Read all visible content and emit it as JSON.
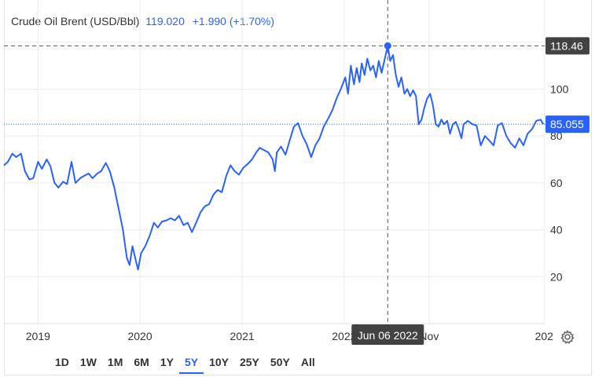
{
  "legend": {
    "name": "Crude Oil Brent (USD/Bbl)",
    "value": "119.020",
    "change": "+1.990 (+1.70%)"
  },
  "crosshair": {
    "date_label": "Jun 06 2022",
    "price_label": "118.46",
    "price": 118.46
  },
  "last_price": {
    "label": "85.055",
    "price": 85.055
  },
  "range_buttons": [
    {
      "label": "1D",
      "active": false
    },
    {
      "label": "1W",
      "active": false
    },
    {
      "label": "1M",
      "active": false
    },
    {
      "label": "6M",
      "active": false
    },
    {
      "label": "1Y",
      "active": false
    },
    {
      "label": "5Y",
      "active": true
    },
    {
      "label": "10Y",
      "active": false
    },
    {
      "label": "25Y",
      "active": false
    },
    {
      "label": "50Y",
      "active": false
    },
    {
      "label": "All",
      "active": false
    }
  ],
  "colors": {
    "line": "#2962ff",
    "grid": "#ececec",
    "crosshair": "#555555",
    "label_dark": "#424242",
    "label_blue": "#2962ff"
  },
  "icons": {
    "settings": "gear-icon"
  },
  "chart_data": {
    "type": "line",
    "series": [
      {
        "name": "Crude Oil Brent (USD/Bbl)",
        "points": [
          [
            "2018-09-01",
            67.5
          ],
          [
            "2018-09-15",
            69
          ],
          [
            "2018-10-01",
            72.5
          ],
          [
            "2018-10-15",
            71
          ],
          [
            "2018-11-01",
            72.5
          ],
          [
            "2018-11-15",
            65
          ],
          [
            "2018-12-01",
            61.5
          ],
          [
            "2018-12-15",
            62
          ],
          [
            "2019-01-01",
            69
          ],
          [
            "2019-01-15",
            66
          ],
          [
            "2019-02-01",
            70
          ],
          [
            "2019-02-15",
            67
          ],
          [
            "2019-03-01",
            60
          ],
          [
            "2019-03-15",
            58
          ],
          [
            "2019-04-01",
            60.5
          ],
          [
            "2019-04-15",
            59.5
          ],
          [
            "2019-05-01",
            69
          ],
          [
            "2019-05-15",
            60
          ],
          [
            "2019-06-01",
            62
          ],
          [
            "2019-06-15",
            63
          ],
          [
            "2019-07-01",
            64
          ],
          [
            "2019-07-15",
            62
          ],
          [
            "2019-08-01",
            64
          ],
          [
            "2019-08-15",
            65
          ],
          [
            "2019-09-01",
            68.5
          ],
          [
            "2019-09-15",
            65
          ],
          [
            "2019-10-01",
            58
          ],
          [
            "2019-10-15",
            50
          ],
          [
            "2019-11-01",
            40
          ],
          [
            "2019-11-15",
            28
          ],
          [
            "2019-11-25",
            25
          ],
          [
            "2019-12-05",
            33
          ],
          [
            "2019-12-15",
            28
          ],
          [
            "2019-12-25",
            23
          ],
          [
            "2020-01-05",
            30
          ],
          [
            "2020-01-20",
            33
          ],
          [
            "2020-02-05",
            37.5
          ],
          [
            "2020-02-20",
            43
          ],
          [
            "2020-03-05",
            41
          ],
          [
            "2020-03-20",
            43.5
          ],
          [
            "2020-04-05",
            44
          ],
          [
            "2020-04-20",
            45
          ],
          [
            "2020-05-05",
            44
          ],
          [
            "2020-05-20",
            46
          ],
          [
            "2020-06-05",
            42
          ],
          [
            "2020-06-20",
            43
          ],
          [
            "2020-07-05",
            39
          ],
          [
            "2020-07-20",
            43
          ],
          [
            "2020-08-05",
            47.5
          ],
          [
            "2020-08-20",
            50
          ],
          [
            "2020-09-05",
            51
          ],
          [
            "2020-09-20",
            55
          ],
          [
            "2020-10-05",
            57
          ],
          [
            "2020-10-20",
            56
          ],
          [
            "2020-11-05",
            63
          ],
          [
            "2020-11-20",
            67.5
          ],
          [
            "2020-12-05",
            65
          ],
          [
            "2020-12-20",
            63.5
          ],
          [
            "2021-01-05",
            66.5
          ],
          [
            "2021-01-20",
            68
          ],
          [
            "2021-02-05",
            70
          ],
          [
            "2021-02-20",
            73
          ],
          [
            "2021-03-05",
            75
          ],
          [
            "2021-03-20",
            74
          ],
          [
            "2021-04-05",
            73
          ],
          [
            "2021-04-20",
            70
          ],
          [
            "2021-04-28",
            65
          ],
          [
            "2021-05-05",
            73
          ],
          [
            "2021-05-20",
            75.5
          ],
          [
            "2021-06-05",
            72
          ],
          [
            "2021-06-20",
            78
          ],
          [
            "2021-07-05",
            84
          ],
          [
            "2021-07-20",
            85.5
          ],
          [
            "2021-08-05",
            80
          ],
          [
            "2021-08-20",
            76.5
          ],
          [
            "2021-09-05",
            71
          ],
          [
            "2021-09-20",
            76
          ],
          [
            "2021-10-05",
            79
          ],
          [
            "2021-10-20",
            84
          ],
          [
            "2021-11-05",
            87.5
          ],
          [
            "2021-11-20",
            91
          ],
          [
            "2021-12-05",
            96
          ],
          [
            "2021-12-20",
            100
          ],
          [
            "2022-01-05",
            105
          ],
          [
            "2022-01-15",
            98
          ],
          [
            "2022-01-25",
            110
          ],
          [
            "2022-02-05",
            102
          ],
          [
            "2022-02-15",
            109
          ],
          [
            "2022-02-25",
            103
          ],
          [
            "2022-03-05",
            111
          ],
          [
            "2022-03-15",
            106
          ],
          [
            "2022-03-25",
            113
          ],
          [
            "2022-04-05",
            108
          ],
          [
            "2022-04-15",
            110
          ],
          [
            "2022-04-25",
            105
          ],
          [
            "2022-05-05",
            112
          ],
          [
            "2022-05-15",
            107
          ],
          [
            "2022-06-06",
            118.46
          ],
          [
            "2022-06-15",
            112
          ],
          [
            "2022-06-25",
            114.5
          ],
          [
            "2022-07-05",
            106
          ],
          [
            "2022-07-15",
            101
          ],
          [
            "2022-07-25",
            105
          ],
          [
            "2022-08-05",
            98
          ],
          [
            "2022-08-15",
            100
          ],
          [
            "2022-08-25",
            97
          ],
          [
            "2022-09-05",
            99.5
          ],
          [
            "2022-09-15",
            97
          ],
          [
            "2022-09-25",
            85
          ],
          [
            "2022-10-05",
            87
          ],
          [
            "2022-10-15",
            92
          ],
          [
            "2022-10-25",
            96
          ],
          [
            "2022-11-05",
            98
          ],
          [
            "2022-11-15",
            93
          ],
          [
            "2022-11-25",
            85
          ],
          [
            "2022-12-05",
            84
          ],
          [
            "2022-12-15",
            87
          ],
          [
            "2022-12-25",
            85
          ],
          [
            "2023-01-05",
            86.5
          ],
          [
            "2023-01-15",
            81
          ],
          [
            "2023-01-25",
            85
          ],
          [
            "2023-02-05",
            86
          ],
          [
            "2023-02-15",
            83
          ],
          [
            "2023-02-25",
            79
          ],
          [
            "2023-03-05",
            85
          ],
          [
            "2023-03-20",
            86.5
          ],
          [
            "2023-04-05",
            85
          ],
          [
            "2023-04-20",
            84.5
          ],
          [
            "2023-05-05",
            76
          ],
          [
            "2023-05-20",
            80
          ],
          [
            "2023-06-05",
            78
          ],
          [
            "2023-06-20",
            76
          ],
          [
            "2023-07-05",
            84.5
          ],
          [
            "2023-07-20",
            85.5
          ],
          [
            "2023-08-05",
            80
          ],
          [
            "2023-08-20",
            77
          ],
          [
            "2023-09-05",
            75
          ],
          [
            "2023-09-20",
            79
          ],
          [
            "2023-10-05",
            76
          ],
          [
            "2023-10-20",
            81
          ],
          [
            "2023-11-05",
            83
          ],
          [
            "2023-11-20",
            86.5
          ],
          [
            "2023-12-05",
            87
          ],
          [
            "2023-12-15",
            85.055
          ]
        ]
      }
    ],
    "y_ticks": [
      20,
      40,
      60,
      80,
      100,
      120
    ],
    "ylim": [
      0,
      138
    ],
    "x_ticks": [
      {
        "label": "2019",
        "date": "2019-01-01"
      },
      {
        "label": "2020",
        "date": "2020-01-01"
      },
      {
        "label": "2021",
        "date": "2021-01-01"
      },
      {
        "label": "2022",
        "date": "2022-01-01"
      },
      {
        "label": "Nov",
        "date": "2022-11-01"
      },
      {
        "label": "202",
        "date": "2023-12-18"
      }
    ],
    "xlim": [
      "2018-09-01",
      "2023-12-20"
    ],
    "grid": true
  }
}
